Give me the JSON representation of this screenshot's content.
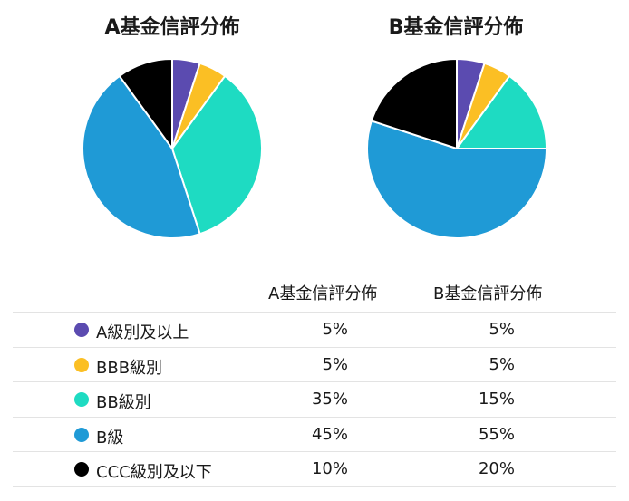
{
  "chart_data": [
    {
      "type": "pie",
      "title": "A基金信評分佈",
      "labels": [
        "A級別及以上",
        "BBB級別",
        "BB級別",
        "B級",
        "CCC級別及以下"
      ],
      "values": [
        5,
        5,
        35,
        45,
        10
      ],
      "colors": [
        "#5b4bb0",
        "#fbbf24",
        "#1edbc2",
        "#1f9ad6",
        "#000000"
      ]
    },
    {
      "type": "pie",
      "title": "B基金信評分佈",
      "labels": [
        "A級別及以上",
        "BBB級別",
        "BB級別",
        "B級",
        "CCC級別及以下"
      ],
      "values": [
        5,
        5,
        15,
        55,
        20
      ],
      "colors": [
        "#5b4bb0",
        "#fbbf24",
        "#1edbc2",
        "#1f9ad6",
        "#000000"
      ]
    }
  ],
  "table": {
    "headers": [
      "A基金信評分佈",
      "B基金信評分佈"
    ],
    "rows": [
      {
        "label": "A級別及以上",
        "a": "5%",
        "b": "5%"
      },
      {
        "label": "BBB級別",
        "a": "5%",
        "b": "5%"
      },
      {
        "label": "BB級別",
        "a": "35%",
        "b": "15%"
      },
      {
        "label": "B級",
        "a": "45%",
        "b": "55%"
      },
      {
        "label": "CCC級別及以下",
        "a": "10%",
        "b": "20%"
      }
    ]
  }
}
